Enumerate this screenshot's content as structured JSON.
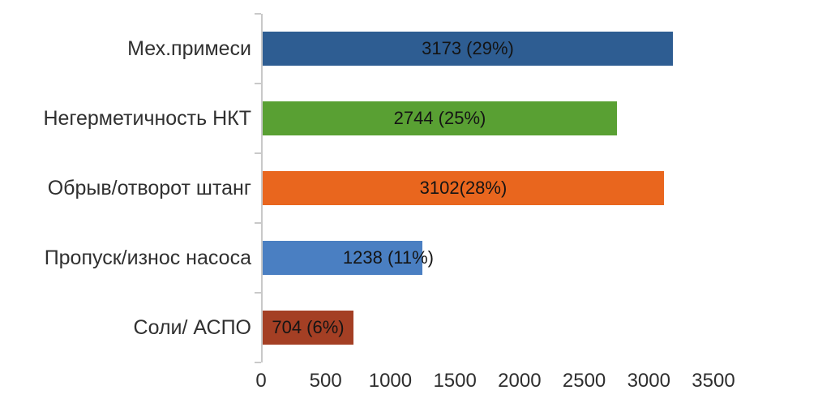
{
  "chart_data": {
    "type": "bar",
    "orientation": "horizontal",
    "title": "",
    "xlabel": "",
    "ylabel": "",
    "grid": false,
    "legend": false,
    "xlim": [
      0,
      3500
    ],
    "x_ticks": [
      "0",
      "500",
      "1000",
      "1500",
      "2000",
      "2500",
      "3000",
      "3500"
    ],
    "x_tick_values": [
      0,
      500,
      1000,
      1500,
      2000,
      2500,
      3000,
      3500
    ],
    "categories": [
      "Мех.примеси",
      "Негерметичность НКТ",
      "Обрыв/отворот штанг",
      "Пропуск/износ насоса",
      "Соли/ АСПО"
    ],
    "values": [
      3173,
      2744,
      3102,
      1238,
      704
    ],
    "percentages": [
      29,
      25,
      28,
      11,
      6
    ],
    "data_labels": [
      "3173 (29%)",
      "2744 (25%)",
      "3102(28%)",
      "1238 (11%)",
      "704 (6%)"
    ],
    "data_label_align": [
      "center",
      "center",
      "center",
      "end",
      "center"
    ],
    "bar_colors": [
      "#2E5D92",
      "#59A033",
      "#E9661E",
      "#4A7FC2",
      "#A43F24"
    ],
    "axis_line_color": "#C9C9C9",
    "category_text_color": "#303030",
    "data_label_color": "#141414",
    "tick_text_color": "#2E2E2E"
  }
}
